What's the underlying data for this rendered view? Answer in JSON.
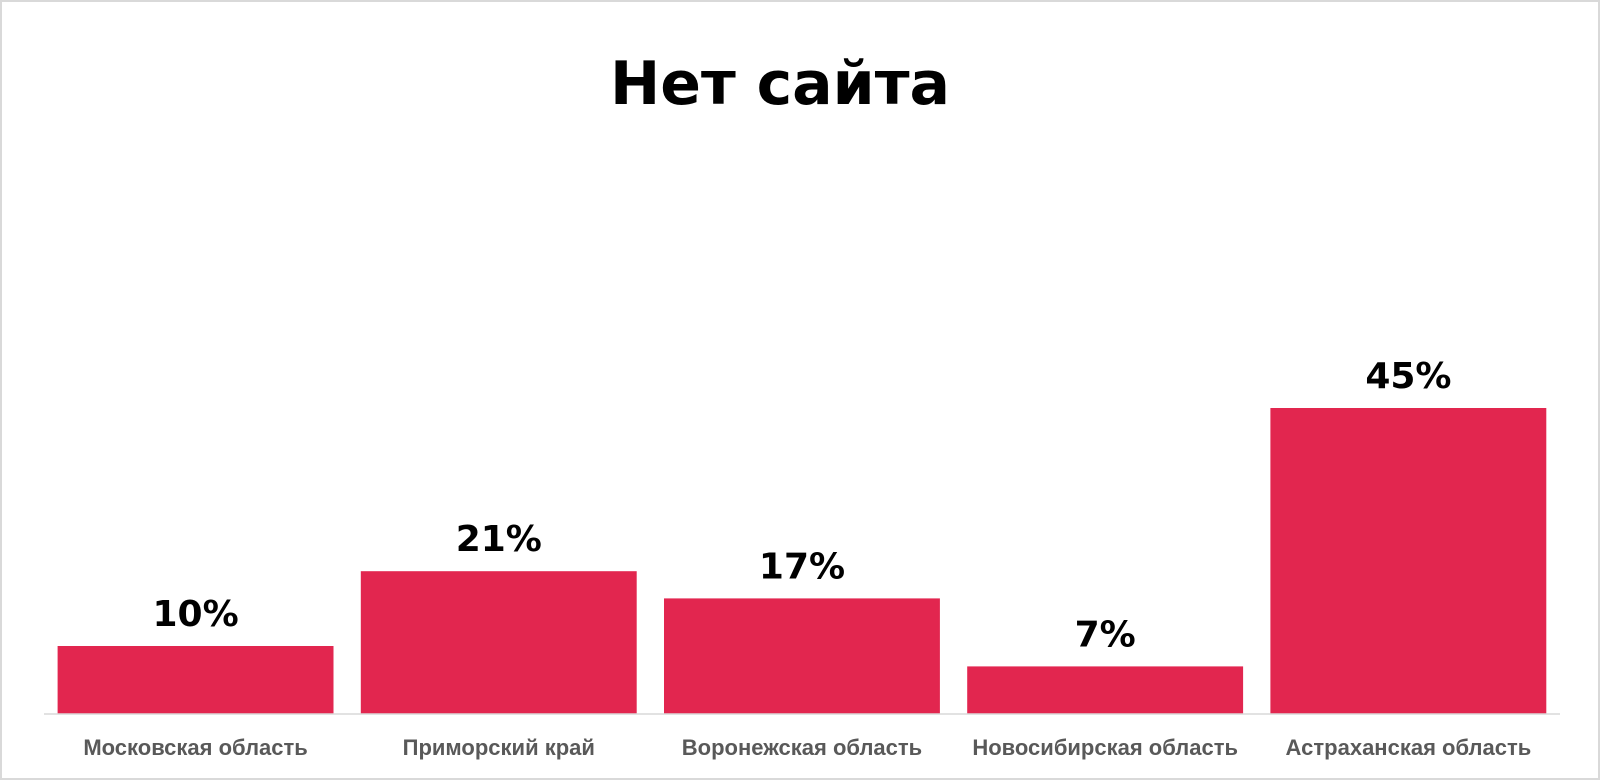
{
  "chart_data": {
    "type": "bar",
    "title": "Нет сайта",
    "xlabel": "",
    "ylabel": "",
    "categories": [
      "Московская область",
      "Приморский край",
      "Воронежская область",
      "Новосибирская область",
      "Астраханская область"
    ],
    "values": [
      10,
      21,
      17,
      7,
      45
    ],
    "value_labels": [
      "10%",
      "21%",
      "17%",
      "7%",
      "45%"
    ],
    "ylim": [
      0,
      50
    ],
    "grid": false,
    "legend": "none",
    "colors": {
      "bar": "#e2264f",
      "axis": "#d9d9d9",
      "category_text": "#595959",
      "value_text": "#000000"
    }
  }
}
